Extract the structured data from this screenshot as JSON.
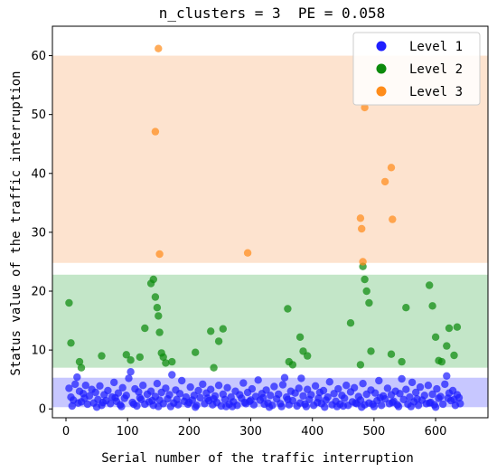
{
  "chart_data": {
    "type": "scatter",
    "title": "n_clusters = 3  PE = 0.058",
    "xlabel": "Serial number of the traffic interruption",
    "ylabel": "Status value of the traffic interruption",
    "xlim": [
      -22,
      685
    ],
    "ylim": [
      -1.5,
      65
    ],
    "xticks": [
      0,
      100,
      200,
      300,
      400,
      500,
      600
    ],
    "yticks": [
      0,
      10,
      20,
      30,
      40,
      50,
      60
    ],
    "legend_position": "top-right",
    "bands": [
      {
        "level": "Level 1",
        "y0": 0.3,
        "y1": 5.3,
        "color": "#c7c7ff"
      },
      {
        "level": "Level 2",
        "y0": 7.0,
        "y1": 22.8,
        "color": "#c3e6c8"
      },
      {
        "level": "Level 3",
        "y0": 24.8,
        "y1": 60.0,
        "color": "#fde3cf"
      }
    ],
    "series": [
      {
        "name": "Level 1",
        "color": "#1f1fff",
        "points": [
          [
            5,
            3.5
          ],
          [
            8,
            2.0
          ],
          [
            12,
            1.5
          ],
          [
            15,
            4.2
          ],
          [
            18,
            5.4
          ],
          [
            22,
            3.0
          ],
          [
            25,
            1.2
          ],
          [
            28,
            2.6
          ],
          [
            32,
            4.0
          ],
          [
            35,
            0.8
          ],
          [
            38,
            2.2
          ],
          [
            42,
            3.3
          ],
          [
            45,
            1.0
          ],
          [
            48,
            2.8
          ],
          [
            52,
            1.6
          ],
          [
            55,
            3.9
          ],
          [
            58,
            0.6
          ],
          [
            62,
            2.4
          ],
          [
            65,
            1.4
          ],
          [
            68,
            3.1
          ],
          [
            72,
            0.9
          ],
          [
            75,
            2.0
          ],
          [
            78,
            4.5
          ],
          [
            82,
            1.3
          ],
          [
            85,
            2.7
          ],
          [
            88,
            0.7
          ],
          [
            92,
            3.6
          ],
          [
            95,
            1.8
          ],
          [
            98,
            2.3
          ],
          [
            102,
            5.2
          ],
          [
            105,
            6.3
          ],
          [
            108,
            1.1
          ],
          [
            112,
            3.4
          ],
          [
            115,
            0.5
          ],
          [
            118,
            2.9
          ],
          [
            122,
            1.6
          ],
          [
            125,
            4.0
          ],
          [
            128,
            0.8
          ],
          [
            132,
            2.5
          ],
          [
            135,
            1.2
          ],
          [
            138,
            3.0
          ],
          [
            142,
            0.6
          ],
          [
            145,
            2.1
          ],
          [
            148,
            4.3
          ],
          [
            152,
            1.5
          ],
          [
            155,
            2.8
          ],
          [
            158,
            0.9
          ],
          [
            162,
            3.5
          ],
          [
            165,
            1.7
          ],
          [
            168,
            2.4
          ],
          [
            172,
            5.8
          ],
          [
            175,
            1.0
          ],
          [
            178,
            3.2
          ],
          [
            182,
            0.7
          ],
          [
            185,
            2.6
          ],
          [
            188,
            4.8
          ],
          [
            192,
            1.3
          ],
          [
            195,
            2.0
          ],
          [
            198,
            0.8
          ],
          [
            202,
            3.7
          ],
          [
            205,
            1.5
          ],
          [
            208,
            2.3
          ],
          [
            212,
            0.6
          ],
          [
            215,
            3.1
          ],
          [
            218,
            1.9
          ],
          [
            222,
            4.2
          ],
          [
            225,
            0.9
          ],
          [
            228,
            2.7
          ],
          [
            232,
            1.4
          ],
          [
            235,
            3.3
          ],
          [
            238,
            0.7
          ],
          [
            242,
            2.2
          ],
          [
            245,
            1.1
          ],
          [
            248,
            4.0
          ],
          [
            252,
            0.5
          ],
          [
            255,
            2.5
          ],
          [
            258,
            1.6
          ],
          [
            262,
            3.6
          ],
          [
            265,
            0.8
          ],
          [
            268,
            2.0
          ],
          [
            272,
            1.2
          ],
          [
            275,
            3.0
          ],
          [
            278,
            0.6
          ],
          [
            282,
            2.4
          ],
          [
            285,
            1.8
          ],
          [
            288,
            4.4
          ],
          [
            292,
            0.9
          ],
          [
            295,
            2.8
          ],
          [
            298,
            1.3
          ],
          [
            302,
            3.4
          ],
          [
            305,
            0.7
          ],
          [
            308,
            2.1
          ],
          [
            312,
            4.9
          ],
          [
            315,
            1.5
          ],
          [
            318,
            2.6
          ],
          [
            322,
            0.8
          ],
          [
            325,
            3.2
          ],
          [
            328,
            1.0
          ],
          [
            332,
            2.3
          ],
          [
            335,
            0.6
          ],
          [
            338,
            3.8
          ],
          [
            342,
            1.7
          ],
          [
            345,
            2.5
          ],
          [
            348,
            0.9
          ],
          [
            352,
            4.1
          ],
          [
            355,
            5.3
          ],
          [
            358,
            2.0
          ],
          [
            362,
            0.7
          ],
          [
            365,
            3.0
          ],
          [
            368,
            1.4
          ],
          [
            372,
            2.7
          ],
          [
            375,
            0.5
          ],
          [
            378,
            3.5
          ],
          [
            382,
            5.2
          ],
          [
            385,
            2.2
          ],
          [
            388,
            0.8
          ],
          [
            392,
            3.3
          ],
          [
            395,
            1.6
          ],
          [
            398,
            2.4
          ],
          [
            402,
            0.6
          ],
          [
            405,
            3.9
          ],
          [
            408,
            1.1
          ],
          [
            412,
            2.8
          ],
          [
            415,
            0.9
          ],
          [
            418,
            3.1
          ],
          [
            422,
            1.5
          ],
          [
            425,
            2.0
          ],
          [
            428,
            4.6
          ],
          [
            432,
            0.7
          ],
          [
            435,
            2.6
          ],
          [
            438,
            1.3
          ],
          [
            442,
            3.4
          ],
          [
            445,
            0.8
          ],
          [
            448,
            2.3
          ],
          [
            452,
            1.8
          ],
          [
            455,
            4.0
          ],
          [
            458,
            0.6
          ],
          [
            462,
            2.9
          ],
          [
            465,
            1.2
          ],
          [
            468,
            3.6
          ],
          [
            472,
            0.9
          ],
          [
            475,
            2.1
          ],
          [
            478,
            1.5
          ],
          [
            482,
            4.3
          ],
          [
            485,
            0.7
          ],
          [
            488,
            2.5
          ],
          [
            492,
            1.0
          ],
          [
            495,
            3.2
          ],
          [
            498,
            0.8
          ],
          [
            502,
            2.7
          ],
          [
            505,
            1.4
          ],
          [
            508,
            4.8
          ],
          [
            512,
            0.6
          ],
          [
            515,
            2.2
          ],
          [
            518,
            1.7
          ],
          [
            522,
            3.5
          ],
          [
            525,
            0.9
          ],
          [
            528,
            2.4
          ],
          [
            532,
            1.3
          ],
          [
            535,
            3.0
          ],
          [
            538,
            0.7
          ],
          [
            542,
            2.6
          ],
          [
            545,
            5.1
          ],
          [
            548,
            1.6
          ],
          [
            552,
            3.3
          ],
          [
            555,
            0.8
          ],
          [
            558,
            2.0
          ],
          [
            562,
            4.5
          ],
          [
            565,
            1.2
          ],
          [
            568,
            2.8
          ],
          [
            572,
            0.6
          ],
          [
            575,
            3.7
          ],
          [
            578,
            1.5
          ],
          [
            582,
            2.3
          ],
          [
            585,
            0.9
          ],
          [
            588,
            4.0
          ],
          [
            592,
            1.1
          ],
          [
            595,
            2.5
          ],
          [
            598,
            0.7
          ],
          [
            602,
            3.4
          ],
          [
            605,
            1.8
          ],
          [
            608,
            2.1
          ],
          [
            612,
            0.8
          ],
          [
            615,
            4.2
          ],
          [
            618,
            5.6
          ],
          [
            622,
            2.7
          ],
          [
            625,
            1.4
          ],
          [
            628,
            3.1
          ],
          [
            632,
            0.6
          ],
          [
            635,
            2.4
          ],
          [
            638,
            1.9
          ],
          [
            640,
            0.9
          ],
          [
            10,
            0.5
          ],
          [
            30,
            1.8
          ],
          [
            60,
            1.1
          ],
          [
            90,
            0.4
          ],
          [
            120,
            1.9
          ],
          [
            150,
            0.4
          ],
          [
            180,
            1.6
          ],
          [
            210,
            0.3
          ],
          [
            240,
            1.7
          ],
          [
            270,
            0.4
          ],
          [
            300,
            1.5
          ],
          [
            330,
            0.3
          ],
          [
            360,
            1.6
          ],
          [
            390,
            0.4
          ],
          [
            420,
            0.3
          ],
          [
            450,
            0.5
          ],
          [
            480,
            0.3
          ],
          [
            510,
            1.9
          ],
          [
            540,
            0.4
          ],
          [
            570,
            1.7
          ],
          [
            600,
            0.3
          ],
          [
            630,
            1.6
          ],
          [
            20,
            1.0
          ],
          [
            50,
            0.3
          ],
          [
            80,
            1.9
          ],
          [
            110,
            0.8
          ],
          [
            140,
            1.4
          ],
          [
            170,
            0.4
          ],
          [
            200,
            1.1
          ],
          [
            230,
            1.8
          ],
          [
            260,
            0.4
          ],
          [
            290,
            1.1
          ],
          [
            320,
            1.9
          ],
          [
            350,
            0.4
          ],
          [
            380,
            1.0
          ],
          [
            410,
            1.8
          ],
          [
            440,
            0.4
          ],
          [
            470,
            1.0
          ],
          [
            500,
            0.4
          ],
          [
            530,
            1.1
          ],
          [
            560,
            0.4
          ],
          [
            590,
            1.0
          ],
          [
            620,
            1.8
          ]
        ]
      },
      {
        "name": "Level 2",
        "color": "#0c8a0c",
        "points": [
          [
            5,
            18.0
          ],
          [
            8,
            11.2
          ],
          [
            22,
            8.0
          ],
          [
            25,
            7.0
          ],
          [
            58,
            9.0
          ],
          [
            98,
            9.2
          ],
          [
            105,
            8.3
          ],
          [
            120,
            8.8
          ],
          [
            128,
            13.7
          ],
          [
            138,
            21.3
          ],
          [
            142,
            22.0
          ],
          [
            145,
            19.0
          ],
          [
            148,
            17.2
          ],
          [
            150,
            15.8
          ],
          [
            152,
            13.0
          ],
          [
            155,
            9.5
          ],
          [
            158,
            8.8
          ],
          [
            162,
            7.8
          ],
          [
            172,
            8.0
          ],
          [
            210,
            9.6
          ],
          [
            235,
            13.2
          ],
          [
            240,
            7.0
          ],
          [
            248,
            11.5
          ],
          [
            255,
            13.6
          ],
          [
            360,
            17.0
          ],
          [
            362,
            8.0
          ],
          [
            368,
            7.5
          ],
          [
            380,
            12.2
          ],
          [
            385,
            9.8
          ],
          [
            392,
            9.0
          ],
          [
            462,
            14.6
          ],
          [
            478,
            7.5
          ],
          [
            482,
            24.2
          ],
          [
            485,
            22.0
          ],
          [
            488,
            20.0
          ],
          [
            492,
            18.0
          ],
          [
            495,
            9.8
          ],
          [
            528,
            9.3
          ],
          [
            545,
            8.0
          ],
          [
            552,
            17.2
          ],
          [
            590,
            21.0
          ],
          [
            595,
            17.5
          ],
          [
            600,
            12.2
          ],
          [
            605,
            8.2
          ],
          [
            610,
            8.0
          ],
          [
            618,
            10.7
          ],
          [
            622,
            13.7
          ],
          [
            630,
            9.1
          ],
          [
            635,
            13.9
          ]
        ]
      },
      {
        "name": "Level 3",
        "color": "#ff8c1a",
        "points": [
          [
            150,
            61.2
          ],
          [
            145,
            47.1
          ],
          [
            152,
            26.3
          ],
          [
            295,
            26.5
          ],
          [
            478,
            32.4
          ],
          [
            480,
            30.6
          ],
          [
            482,
            25.0
          ],
          [
            485,
            51.2
          ],
          [
            518,
            38.6
          ],
          [
            528,
            41.0
          ],
          [
            530,
            32.2
          ]
        ]
      }
    ]
  }
}
